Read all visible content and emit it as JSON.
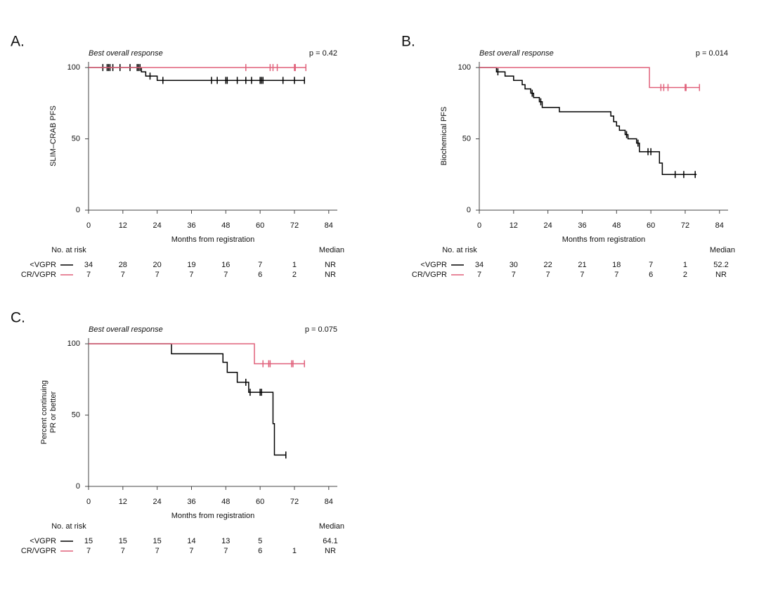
{
  "chart_data": [
    {
      "type": "step",
      "panel": "A.",
      "subtitle": "Best overall response",
      "annotation": "p = 0.42",
      "ylabel": [
        "SLIM–CRAB PFS"
      ],
      "xlabel": "Months from registration",
      "xlim": [
        0,
        87
      ],
      "ylim": [
        0,
        104
      ],
      "xticks": [
        0,
        12,
        24,
        36,
        48,
        60,
        72,
        84
      ],
      "yticks": [
        0,
        50,
        100
      ],
      "risk_title": "No. at risk",
      "median_title": "Median",
      "series": [
        {
          "name": "<VGPR",
          "color": "#000000",
          "x": [
            0,
            18.5,
            20,
            24,
            75.5
          ],
          "values": [
            100,
            97,
            94,
            91,
            91
          ],
          "censor_x": [
            5,
            6.5,
            7,
            7.5,
            8.5,
            11,
            14.5,
            17,
            17.5,
            18,
            21.5,
            26,
            43,
            45,
            48,
            48.5,
            52,
            55,
            57,
            60,
            60.5,
            61,
            68,
            72,
            75.5
          ],
          "censor_values": [
            100,
            100,
            100,
            100,
            100,
            100,
            100,
            100,
            100,
            100,
            94,
            91,
            91,
            91,
            91,
            91,
            91,
            91,
            91,
            91,
            91,
            91,
            91,
            91,
            91
          ],
          "at_risk": [
            34,
            28,
            20,
            19,
            16,
            7,
            1
          ],
          "median": "NR"
        },
        {
          "name": "CR/VGPR",
          "color": "#e0607a",
          "x": [
            0,
            76
          ],
          "values": [
            100,
            100
          ],
          "censor_x": [
            55,
            63.5,
            64.5,
            66,
            72,
            72.3,
            76
          ],
          "censor_values": [
            100,
            100,
            100,
            100,
            100,
            100,
            100
          ],
          "at_risk": [
            7,
            7,
            7,
            7,
            7,
            6,
            2
          ],
          "median": "NR"
        }
      ]
    },
    {
      "type": "step",
      "panel": "B.",
      "subtitle": "Best overall response",
      "annotation": "p = 0.014",
      "ylabel": [
        "Biochemical PFS"
      ],
      "xlabel": "Months from registration",
      "xlim": [
        0,
        87
      ],
      "ylim": [
        0,
        104
      ],
      "xticks": [
        0,
        12,
        24,
        36,
        48,
        60,
        72,
        84
      ],
      "yticks": [
        0,
        50,
        100
      ],
      "risk_title": "No. at risk",
      "median_title": "Median",
      "series": [
        {
          "name": "<VGPR",
          "color": "#000000",
          "x": [
            0,
            6,
            9,
            12,
            15,
            16,
            18,
            19,
            21,
            22,
            28,
            46,
            47,
            48,
            49,
            51,
            52,
            55,
            56,
            63,
            64,
            76
          ],
          "values": [
            100,
            97,
            94,
            91,
            88,
            85,
            82,
            79,
            76,
            72,
            69,
            66,
            62,
            59,
            56,
            53,
            50,
            47,
            41,
            33,
            25,
            25
          ],
          "censor_x": [
            6.5,
            18.5,
            21.5,
            51.5,
            55.5,
            59,
            60,
            68.5,
            71.5,
            75.5
          ],
          "censor_values": [
            97,
            82,
            76,
            53,
            47,
            41,
            41,
            25,
            25,
            25
          ],
          "at_risk": [
            34,
            30,
            22,
            21,
            18,
            7,
            1
          ],
          "median": 52.2
        },
        {
          "name": "CR/VGPR",
          "color": "#e0607a",
          "x": [
            0,
            59.5,
            77
          ],
          "values": [
            100,
            86,
            86
          ],
          "censor_x": [
            63.5,
            64.5,
            66,
            72,
            72.3,
            77
          ],
          "censor_values": [
            86,
            86,
            86,
            86,
            86,
            86
          ],
          "at_risk": [
            7,
            7,
            7,
            7,
            7,
            6,
            2
          ],
          "median": "NR"
        }
      ]
    },
    {
      "type": "step",
      "panel": "C.",
      "subtitle": "Best overall response",
      "annotation": "p = 0.075",
      "ylabel": [
        "Percent continuing",
        "PR or better"
      ],
      "xlabel": "Months from registration",
      "xlim": [
        0,
        87
      ],
      "ylim": [
        0,
        104
      ],
      "xticks": [
        0,
        12,
        24,
        36,
        48,
        60,
        72,
        84
      ],
      "yticks": [
        0,
        50,
        100
      ],
      "risk_title": "No. at risk",
      "median_title": "Median",
      "series": [
        {
          "name": "<VGPR",
          "color": "#000000",
          "x": [
            0,
            29,
            47,
            48.5,
            52,
            56,
            64.5,
            65,
            69
          ],
          "values": [
            100,
            93,
            87,
            80,
            73,
            66,
            44,
            22,
            22
          ],
          "censor_x": [
            55,
            56.5,
            60,
            60.5,
            69
          ],
          "censor_values": [
            73,
            66,
            66,
            66,
            22
          ],
          "at_risk": [
            15,
            15,
            15,
            14,
            13,
            5,
            null
          ],
          "median": 64.1
        },
        {
          "name": "CR/VGPR",
          "color": "#e0607a",
          "x": [
            0,
            58,
            75.5
          ],
          "values": [
            100,
            86,
            86
          ],
          "censor_x": [
            61,
            63,
            63.5,
            71,
            71.5,
            75.5
          ],
          "censor_values": [
            86,
            86,
            86,
            86,
            86,
            86
          ],
          "at_risk": [
            7,
            7,
            7,
            7,
            7,
            6,
            1
          ],
          "median": "NR"
        }
      ]
    }
  ]
}
